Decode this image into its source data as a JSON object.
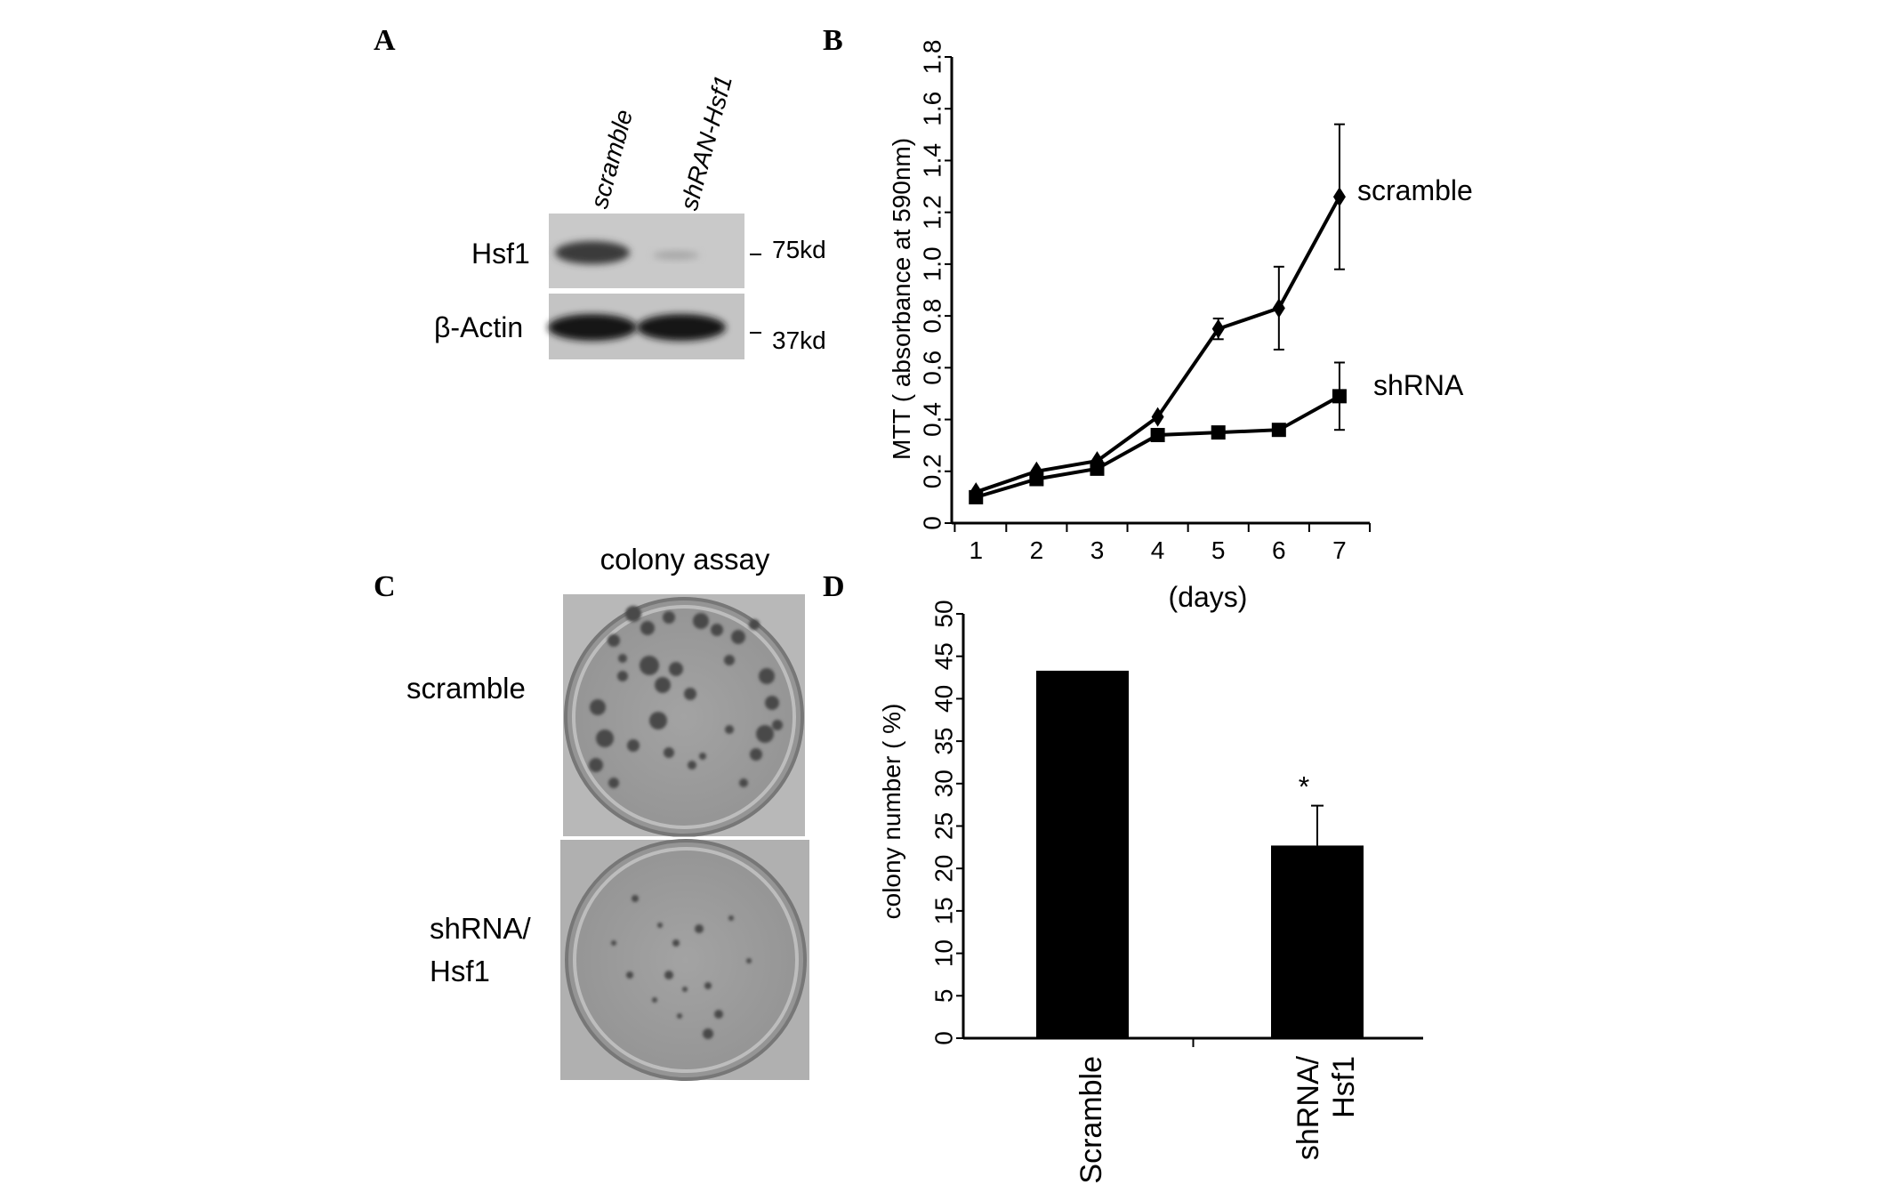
{
  "panels": {
    "A": {
      "letter": "A",
      "lane_labels": [
        "scramble",
        "shRAN-Hsf1"
      ],
      "row_labels": [
        "Hsf1",
        "β-Actin"
      ],
      "markers": [
        "75kd",
        "37kd"
      ]
    },
    "B": {
      "letter": "B"
    },
    "C": {
      "letter": "C",
      "title": "colony assay",
      "row_label_1": "scramble",
      "row_label_2_line1": "shRNA/",
      "row_label_2_line2": "Hsf1"
    },
    "D": {
      "letter": "D"
    }
  },
  "chart_data": [
    {
      "type": "line",
      "xlabel": "(days)",
      "ylabel": "MTT ( absorbance at 590nm)",
      "x": [
        1,
        2,
        3,
        4,
        5,
        6,
        7
      ],
      "xlim": [
        0.6,
        7.5
      ],
      "ylim": [
        0,
        1.8
      ],
      "yticks": [
        "0",
        "0.2",
        "0.4",
        "0.6",
        "0.8",
        "1.0",
        "1.2",
        "1.4",
        "1.6",
        "1.8"
      ],
      "xticks": [
        "1",
        "2",
        "3",
        "4",
        "5",
        "6",
        "7"
      ],
      "series": [
        {
          "name": "scramble",
          "marker": "diamond",
          "values": [
            0.12,
            0.2,
            0.24,
            0.41,
            0.75,
            0.83,
            1.26
          ],
          "error": [
            0.0,
            0.0,
            0.0,
            0.0,
            0.04,
            0.16,
            0.28
          ]
        },
        {
          "name": "shRNA",
          "marker": "square",
          "values": [
            0.1,
            0.17,
            0.21,
            0.34,
            0.35,
            0.36,
            0.49
          ],
          "error": [
            0.0,
            0.0,
            0.0,
            0.0,
            0.0,
            0.0,
            0.13
          ]
        }
      ]
    },
    {
      "type": "bar",
      "categories": [
        "Scramble",
        "shRNA/ Hsf1"
      ],
      "category_lines": [
        [
          "Scramble"
        ],
        [
          "shRNA/",
          "Hsf1"
        ]
      ],
      "values": [
        43.3,
        22.7
      ],
      "error": [
        0.0,
        4.7
      ],
      "annotations": [
        "",
        "*"
      ],
      "ylabel": "colony number ( %)",
      "ylim": [
        0,
        50
      ],
      "yticks": [
        "0",
        "5",
        "10",
        "15",
        "20",
        "25",
        "30",
        "35",
        "40",
        "45",
        "50"
      ],
      "colors": {
        "bar": "#000000"
      }
    }
  ]
}
